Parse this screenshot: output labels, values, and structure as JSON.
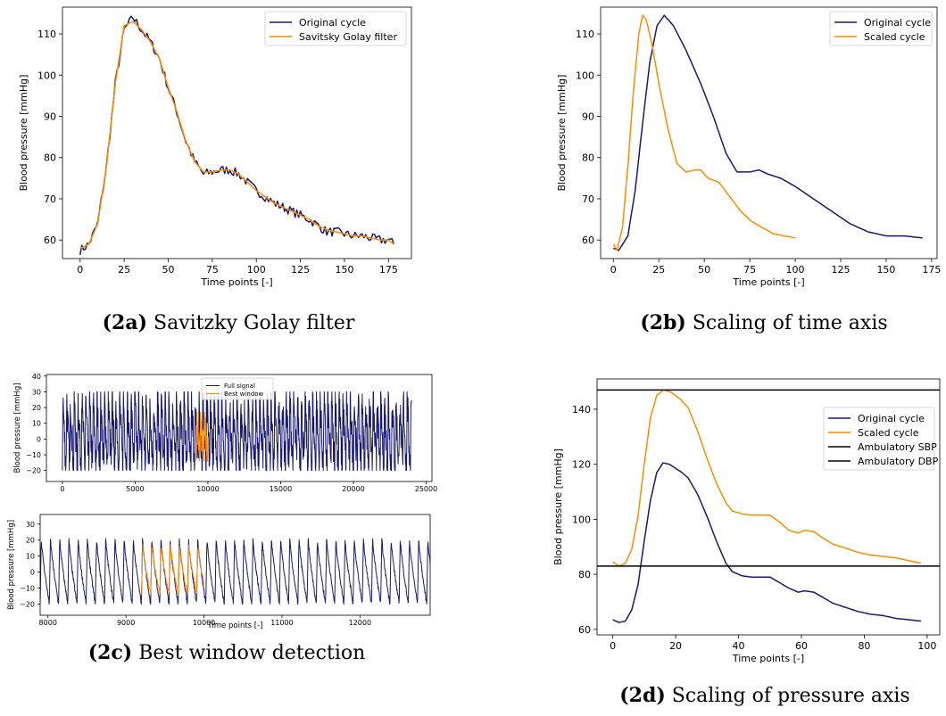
{
  "colors": {
    "original": "#191970",
    "filtered": "#ff8c00",
    "reference": "#000000"
  },
  "captions": {
    "a": {
      "tag": "(2a)",
      "text": "Savitzky Golay filter"
    },
    "b": {
      "tag": "(2b)",
      "text": "Scaling of time axis"
    },
    "c": {
      "tag": "(2c)",
      "text": "Best window detection"
    },
    "d": {
      "tag": "(2d)",
      "text": "Scaling of pressure axis"
    }
  },
  "chart_data": [
    {
      "id": "a",
      "type": "line",
      "xlabel": "Time points [-]",
      "ylabel": "Blood pressure [mmHg]",
      "xlim": [
        -10,
        188
      ],
      "ylim": [
        55.5,
        116.5
      ],
      "xticks": [
        0,
        25,
        50,
        75,
        100,
        125,
        150,
        175
      ],
      "yticks": [
        60,
        70,
        80,
        90,
        100,
        110
      ],
      "legend": "top-right",
      "series": [
        {
          "name": "Original cycle",
          "color": "#191970",
          "x": [
            0,
            5,
            10,
            15,
            20,
            25,
            30,
            35,
            40,
            45,
            50,
            55,
            60,
            65,
            70,
            75,
            80,
            85,
            90,
            95,
            100,
            105,
            110,
            115,
            120,
            125,
            130,
            135,
            140,
            145,
            150,
            155,
            160,
            165,
            170,
            175,
            178
          ],
          "y": [
            57.5,
            59,
            64,
            78,
            98,
            111,
            114,
            111,
            108,
            104,
            97,
            91,
            84,
            79,
            76,
            76.5,
            77,
            77,
            76,
            74,
            72,
            70.5,
            69,
            68,
            67,
            66,
            65,
            63.5,
            62,
            62,
            61.5,
            61,
            61,
            60.5,
            60,
            60,
            59
          ]
        },
        {
          "name": "Savitsky Golay filter",
          "color": "#ff8c00",
          "x": [
            0,
            5,
            10,
            15,
            20,
            25,
            30,
            35,
            40,
            45,
            50,
            55,
            60,
            65,
            70,
            75,
            80,
            85,
            90,
            95,
            100,
            105,
            110,
            115,
            120,
            125,
            130,
            135,
            140,
            145,
            150,
            155,
            160,
            165,
            170,
            175,
            178
          ],
          "y": [
            58,
            59,
            64,
            78,
            98,
            112,
            113,
            111,
            108,
            104,
            97,
            91,
            84,
            79,
            76.5,
            76.5,
            77,
            77,
            76,
            74,
            72,
            70.5,
            69,
            68,
            67,
            66,
            65,
            63.5,
            62.5,
            62,
            61.5,
            61,
            61,
            60.5,
            60,
            60,
            59
          ]
        }
      ]
    },
    {
      "id": "b",
      "type": "line",
      "xlabel": "Time points [-]",
      "ylabel": "Blood pressure [mmHg]",
      "xlim": [
        -7,
        178
      ],
      "ylim": [
        55.5,
        116.5
      ],
      "xticks": [
        0,
        25,
        50,
        75,
        100,
        125,
        150,
        175
      ],
      "yticks": [
        60,
        70,
        80,
        90,
        100,
        110
      ],
      "legend": "top-right",
      "series": [
        {
          "name": "Original cycle",
          "color": "#191970",
          "x": [
            0,
            3,
            8,
            12,
            16,
            20,
            24,
            28,
            33,
            40,
            48,
            55,
            62,
            68,
            75,
            80,
            85,
            92,
            100,
            110,
            120,
            130,
            140,
            150,
            160,
            170
          ],
          "y": [
            58,
            57.5,
            61,
            72,
            88,
            103,
            112,
            114.5,
            112,
            106,
            98,
            90,
            81,
            76.5,
            76.5,
            77,
            76,
            75,
            73,
            70,
            67,
            64,
            62,
            61,
            61,
            60.5
          ]
        },
        {
          "name": "Scaled cycle",
          "color": "#ff8c00",
          "x": [
            0,
            2,
            5,
            8,
            11,
            14,
            16,
            18,
            21,
            25,
            30,
            35,
            40,
            45,
            48,
            52,
            58,
            64,
            70,
            76,
            82,
            88,
            94,
            100
          ],
          "y": [
            59,
            57.5,
            63,
            78,
            96,
            110,
            114.5,
            113.5,
            108,
            98,
            87,
            78.5,
            76.5,
            77,
            77,
            75,
            74,
            70.5,
            67,
            64.5,
            63,
            61.5,
            61,
            60.5
          ]
        }
      ]
    },
    {
      "id": "c1",
      "type": "line",
      "xlabel": "",
      "ylabel": "Blood pressure [mmHg]",
      "xlim": [
        -1100,
        25400
      ],
      "ylim": [
        -27,
        41
      ],
      "xticks": [
        0,
        5000,
        10000,
        15000,
        20000,
        25000
      ],
      "yticks": [
        -20,
        -10,
        0,
        10,
        20,
        30,
        40
      ],
      "legend": "top-center",
      "series": [
        {
          "name": "Full signal",
          "color": "#191970",
          "x_range": [
            0,
            24000
          ],
          "y_band": [
            -20,
            30
          ]
        },
        {
          "name": "Best window",
          "color": "#ff8c00",
          "x_range": [
            9200,
            10000
          ],
          "y_band": [
            -14,
            17
          ]
        }
      ]
    },
    {
      "id": "c2",
      "type": "line",
      "xlabel": "Time points [-]",
      "ylabel": "Blood pressure [mmHg]",
      "xlim": [
        7900,
        12900
      ],
      "ylim": [
        -27,
        36
      ],
      "xticks": [
        8000,
        9000,
        10000,
        11000,
        12000
      ],
      "yticks": [
        -20,
        -10,
        0,
        10,
        20,
        30
      ],
      "series": [
        {
          "name": "Full signal",
          "color": "#191970",
          "x_range": [
            7900,
            12900
          ],
          "y_band": [
            -20,
            21
          ]
        },
        {
          "name": "Best window",
          "color": "#ff8c00",
          "x_range": [
            9200,
            10000
          ],
          "y_band": [
            -14,
            17
          ]
        }
      ]
    },
    {
      "id": "d",
      "type": "line",
      "xlabel": "Time points [-]",
      "ylabel": "Blood pressure [mmHg]",
      "xlim": [
        -5,
        104
      ],
      "ylim": [
        58,
        151
      ],
      "xticks": [
        0,
        20,
        40,
        60,
        80,
        100
      ],
      "yticks": [
        60,
        80,
        100,
        120,
        140
      ],
      "legend": "right",
      "series": [
        {
          "name": "Original cycle",
          "color": "#191970",
          "x": [
            0,
            2,
            4,
            6,
            8,
            10,
            12,
            14,
            16,
            18,
            20,
            22,
            24,
            27,
            30,
            33,
            36,
            38,
            41,
            44,
            47,
            50,
            53,
            56,
            59,
            61,
            64,
            67,
            70,
            74,
            78,
            82,
            86,
            90,
            94,
            98
          ],
          "y": [
            63.5,
            62.5,
            63,
            67,
            76,
            92,
            107,
            117,
            120.5,
            120,
            118.5,
            117,
            115,
            109,
            101,
            92,
            84,
            81,
            79.5,
            79,
            79,
            79,
            77,
            75,
            73.5,
            74,
            73.5,
            71.5,
            69.5,
            68,
            66.5,
            65.5,
            65,
            64,
            63.5,
            63
          ]
        },
        {
          "name": "Scaled cycle",
          "color": "#ff8c00",
          "x": [
            0,
            2,
            4,
            6,
            8,
            10,
            12,
            14,
            16,
            18,
            20,
            22,
            24,
            27,
            30,
            33,
            36,
            38,
            41,
            44,
            47,
            50,
            53,
            56,
            59,
            61,
            64,
            67,
            70,
            74,
            78,
            82,
            86,
            90,
            94,
            98
          ],
          "y": [
            84.5,
            83,
            84,
            89,
            101,
            120,
            137,
            145,
            147,
            146.5,
            145,
            143,
            140.5,
            132,
            122,
            113,
            106,
            103,
            102,
            101.5,
            101.5,
            101.5,
            99,
            96,
            95,
            96,
            95.5,
            93,
            91,
            89.5,
            88,
            87,
            86.5,
            86,
            85,
            84
          ]
        },
        {
          "name": "Ambulatory SBP",
          "color": "#000000",
          "y_const": 147
        },
        {
          "name": "Ambulatory DBP",
          "color": "#000000",
          "y_const": 83
        }
      ]
    }
  ]
}
